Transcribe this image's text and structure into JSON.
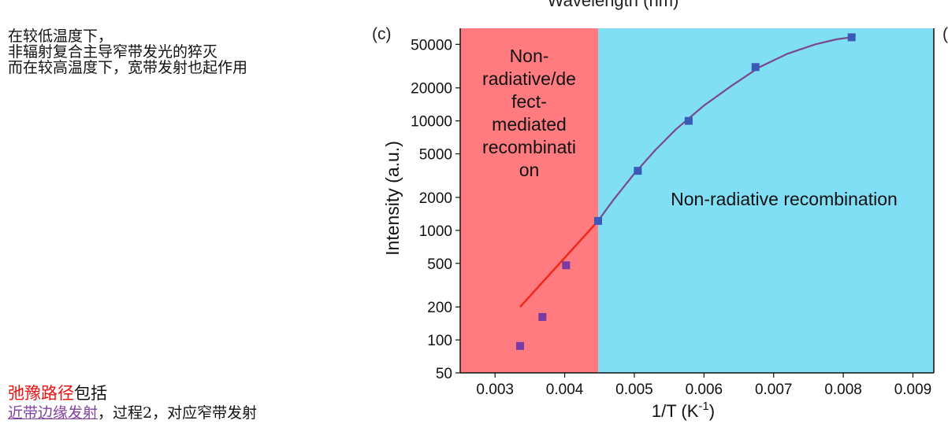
{
  "notes": {
    "line1": "在较低温度下，",
    "line2": "非辐射复合主导窄带发光的猝灭",
    "line3": "而在较高温度下，宽带发射也起作用"
  },
  "bottom_notes": {
    "l1_red": "弛豫路径",
    "l1_rest": "包括",
    "l2_purple": "近带边缘发射",
    "l2_rest": "，过程2，对应窄带发射"
  },
  "top_cut_title": "Wavelength (nm)",
  "panel_label": "(c)",
  "right_panel_label": "(",
  "colors": {
    "region_left": "#ff7b7f",
    "region_right": "#80def5",
    "fit_curve": "#7a4a88",
    "fit_line": "#f02818",
    "marker_purple": "#7a3aa6",
    "marker_blue": "#3a5ab8"
  },
  "chart_data": {
    "type": "scatter",
    "xlabel": "1/T (K",
    "xlabel_sup": "-1",
    "xlabel_close": ")",
    "ylabel": "Intensity (a.u.)",
    "yscale": "log",
    "xlim": [
      0.0025,
      0.0093
    ],
    "ylim": [
      50,
      70000
    ],
    "xticks": [
      0.003,
      0.004,
      0.005,
      0.006,
      0.007,
      0.008,
      0.009
    ],
    "xtick_labels": [
      "0.003",
      "0.004",
      "0.005",
      "0.006",
      "0.007",
      "0.008",
      "0.009"
    ],
    "yticks": [
      50,
      100,
      200,
      500,
      1000,
      2000,
      5000,
      10000,
      20000,
      50000
    ],
    "ytick_labels": [
      "50",
      "100",
      "200",
      "500",
      "1000",
      "2000",
      "5000",
      "10000",
      "20000",
      "50000"
    ],
    "region_boundary_x": 0.00448,
    "regions": [
      {
        "name": "left",
        "label_lines": [
          "Non-",
          "radiative/de",
          "fect-",
          "mediated",
          "recombinati",
          "on"
        ]
      },
      {
        "name": "right",
        "label": "Non-radiative  recombination"
      }
    ],
    "series": [
      {
        "name": "data",
        "x": [
          0.00336,
          0.00368,
          0.00402,
          0.00448,
          0.00505,
          0.00578,
          0.00674,
          0.00812
        ],
        "y": [
          88,
          162,
          480,
          1220,
          3500,
          10000,
          31000,
          58000
        ]
      },
      {
        "name": "fit-curve",
        "x": [
          0.00448,
          0.0047,
          0.005,
          0.0053,
          0.0056,
          0.006,
          0.0064,
          0.0068,
          0.0072,
          0.0076,
          0.0079,
          0.00812
        ],
        "y": [
          1220,
          1900,
          3300,
          5400,
          8400,
          13800,
          21000,
          31000,
          41000,
          50000,
          55500,
          58000
        ]
      },
      {
        "name": "fit-line",
        "x": [
          0.00336,
          0.00448
        ],
        "y": [
          200,
          1220
        ]
      }
    ]
  }
}
